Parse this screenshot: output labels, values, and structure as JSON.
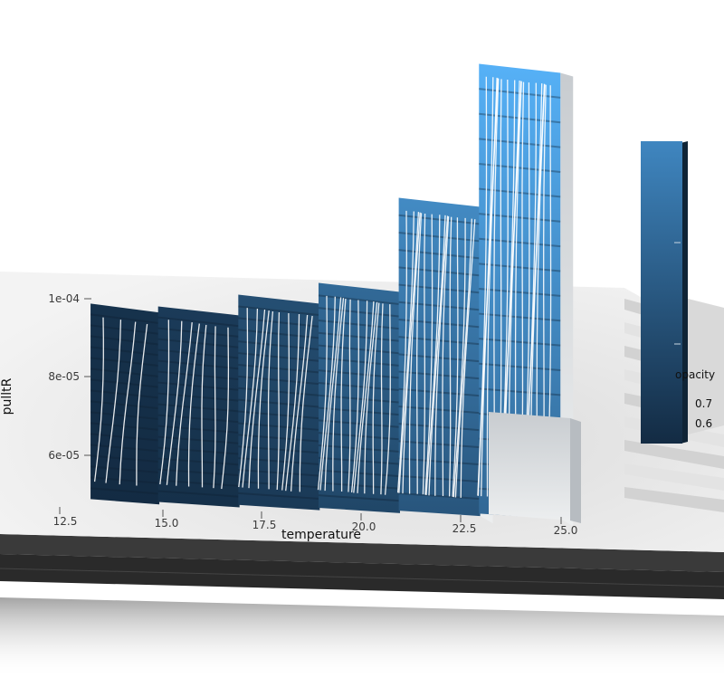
{
  "chart_data": {
    "type": "heatmap",
    "subtype": "3d-extruded-contour",
    "title": "",
    "xlabel": "temperature",
    "ylabel": "pulltR",
    "x_ticks": [
      "12.5",
      "15.0",
      "17.5",
      "20.0",
      "22.5",
      "25.0"
    ],
    "y_ticks": [
      "6e-05",
      "8e-05",
      "1e-04"
    ],
    "x_range": [
      12.5,
      25.0
    ],
    "y_range": [
      5.2e-05,
      0.000106
    ],
    "legend": {
      "title": "opacity",
      "labels": [
        "0.7",
        "0.6"
      ],
      "position": "right",
      "color_low": "#132b43",
      "color_high": "#56b1f7"
    },
    "columns": [
      {
        "x": 13.9,
        "height": 0.4
      },
      {
        "x": 15.9,
        "height": 0.4
      },
      {
        "x": 17.9,
        "height": 0.43
      },
      {
        "x": 19.9,
        "height": 0.46
      },
      {
        "x": 21.9,
        "height": 0.64
      },
      {
        "x": 23.9,
        "height": 0.92
      }
    ]
  },
  "colors": {
    "panel": "#efefef",
    "base": "#2f2f2f",
    "grid": "#ffffff",
    "contour": "#ffffff"
  }
}
